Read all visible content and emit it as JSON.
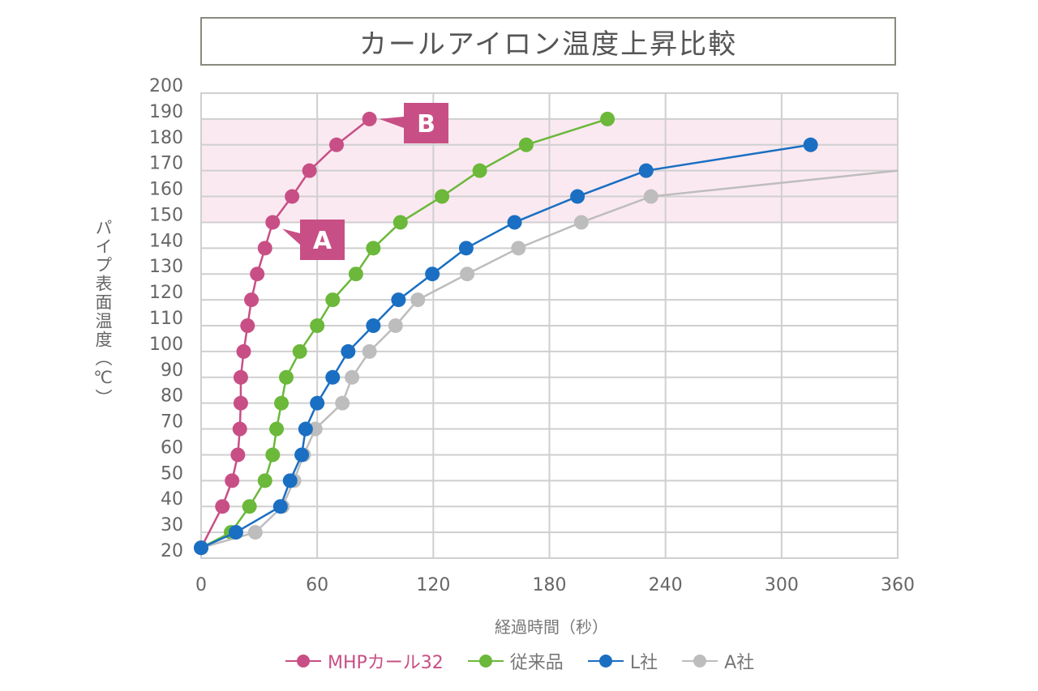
{
  "chart_data": {
    "type": "line",
    "title": "カールアイロン温度上昇比較",
    "xlabel": "経過時間（秒）",
    "ylabel": "パイプ表面温度（℃）",
    "xlim": [
      0,
      360
    ],
    "ylim": [
      20,
      200
    ],
    "xticks": [
      "0",
      "60",
      "120",
      "180",
      "240",
      "300",
      "360"
    ],
    "yticks": [
      "20",
      "30",
      "40",
      "50",
      "60",
      "70",
      "80",
      "90",
      "100",
      "110",
      "120",
      "130",
      "140",
      "150",
      "160",
      "170",
      "180",
      "190",
      "200"
    ],
    "grid": true,
    "highlight_band": [
      150,
      190
    ],
    "legend_position": "bottom",
    "annotations": [
      {
        "label": "A",
        "x": 37,
        "y": 150
      },
      {
        "label": "B",
        "x": 87,
        "y": 190
      }
    ],
    "series": [
      {
        "name": "MHPカール32",
        "color": "#c84f85",
        "markers": true,
        "points": [
          [
            0,
            24
          ],
          [
            11,
            40
          ],
          [
            16,
            50
          ],
          [
            19,
            60
          ],
          [
            20,
            70
          ],
          [
            20.5,
            80
          ],
          [
            20.5,
            90
          ],
          [
            22,
            100
          ],
          [
            24,
            110
          ],
          [
            26,
            120
          ],
          [
            29,
            130
          ],
          [
            33,
            140
          ],
          [
            37,
            150
          ],
          [
            47,
            160
          ],
          [
            56,
            170
          ],
          [
            70,
            180
          ],
          [
            87,
            190
          ]
        ]
      },
      {
        "name": "従来品",
        "color": "#6bb83a",
        "markers": true,
        "points": [
          [
            0,
            24
          ],
          [
            15.5,
            30
          ],
          [
            25,
            40
          ],
          [
            33,
            50
          ],
          [
            37,
            60
          ],
          [
            39,
            70
          ],
          [
            41.5,
            80
          ],
          [
            44,
            90
          ],
          [
            51,
            100
          ],
          [
            60,
            110
          ],
          [
            68,
            120
          ],
          [
            80,
            130
          ],
          [
            89,
            140
          ],
          [
            103,
            150
          ],
          [
            124.5,
            160
          ],
          [
            144,
            170
          ],
          [
            168,
            180
          ],
          [
            210,
            190
          ]
        ]
      },
      {
        "name": "A社",
        "color": "#bdbdbd",
        "markers": true,
        "points": [
          [
            0,
            24
          ],
          [
            28,
            30
          ],
          [
            42,
            40
          ],
          [
            48,
            50
          ],
          [
            53,
            60
          ],
          [
            59,
            70
          ],
          [
            73,
            80
          ],
          [
            78,
            90
          ],
          [
            87,
            100
          ],
          [
            100.5,
            110
          ],
          [
            112,
            120
          ],
          [
            137.5,
            130
          ],
          [
            164,
            140
          ],
          [
            196.5,
            150
          ],
          [
            232.5,
            160
          ],
          [
            360,
            170
          ]
        ]
      },
      {
        "name": "L社",
        "color": "#1a6fc2",
        "markers": true,
        "points": [
          [
            0,
            24
          ],
          [
            18,
            30
          ],
          [
            41,
            40
          ],
          [
            46,
            50
          ],
          [
            52,
            60
          ],
          [
            54,
            70
          ],
          [
            60,
            80
          ],
          [
            68,
            90
          ],
          [
            76,
            100
          ],
          [
            89,
            110
          ],
          [
            102,
            120
          ],
          [
            119.5,
            130
          ],
          [
            137,
            140
          ],
          [
            162,
            150
          ],
          [
            194.5,
            160
          ],
          [
            230,
            170
          ],
          [
            315,
            180
          ]
        ]
      }
    ]
  },
  "legend": [
    {
      "label": "MHPカール32",
      "color": "#c84f85"
    },
    {
      "label": "従来品",
      "color": "#6bb83a"
    },
    {
      "label": "L社",
      "color": "#1a6fc2"
    },
    {
      "label": "A社",
      "color": "#bdbdbd"
    }
  ]
}
